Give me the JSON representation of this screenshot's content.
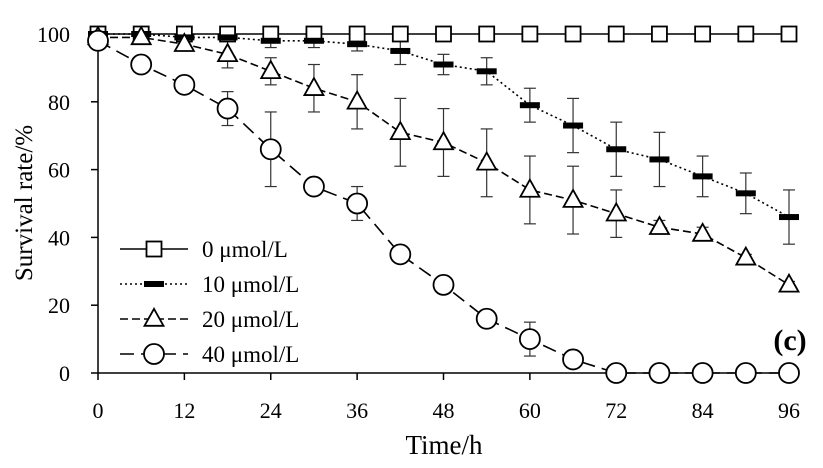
{
  "chart_data": {
    "type": "line",
    "title": "",
    "panel_label": "(c)",
    "xlabel": "Time/h",
    "ylabel": "Survival rate/%",
    "xlim": [
      0,
      96
    ],
    "ylim": [
      0,
      100
    ],
    "xticks": [
      0,
      12,
      24,
      36,
      48,
      60,
      72,
      84,
      96
    ],
    "yticks": [
      0,
      20,
      40,
      60,
      80,
      100
    ],
    "grid": false,
    "legend_position": "bottom-left",
    "x": [
      0,
      6,
      12,
      18,
      24,
      30,
      36,
      42,
      48,
      54,
      60,
      66,
      72,
      78,
      84,
      90,
      96
    ],
    "series": [
      {
        "name": "0 μmol/L",
        "marker": "square",
        "line": "solid",
        "values": [
          100,
          100,
          100,
          100,
          100,
          100,
          100,
          100,
          100,
          100,
          100,
          100,
          100,
          100,
          100,
          100,
          100
        ],
        "errors": [
          0,
          0,
          0,
          0,
          0,
          0,
          0,
          0,
          0,
          0,
          0,
          0,
          0,
          0,
          0,
          0,
          0
        ]
      },
      {
        "name": "10 μmol/L",
        "marker": "dash",
        "line": "dotted",
        "values": [
          100,
          100,
          99,
          99,
          98,
          98,
          97,
          95,
          91,
          89,
          79,
          73,
          66,
          63,
          58,
          53,
          46
        ],
        "errors": [
          0,
          0,
          1,
          1,
          2,
          2,
          2,
          4,
          3,
          4,
          5,
          8,
          8,
          8,
          6,
          6,
          8
        ]
      },
      {
        "name": "20 μmol/L",
        "marker": "triangle",
        "line": "short-dash",
        "values": [
          99,
          99,
          97,
          94,
          89,
          84,
          80,
          71,
          68,
          62,
          54,
          51,
          47,
          43,
          41,
          34,
          26
        ],
        "errors": [
          1,
          1,
          2,
          4,
          4,
          7,
          8,
          10,
          10,
          10,
          10,
          10,
          7,
          2,
          2,
          1,
          1
        ]
      },
      {
        "name": "40 μmol/L",
        "marker": "circle",
        "line": "long-dash",
        "values": [
          98,
          91,
          85,
          78,
          66,
          55,
          50,
          35,
          26,
          16,
          10,
          4,
          0,
          0,
          0,
          0,
          0
        ],
        "errors": [
          2,
          2,
          2,
          5,
          11,
          1,
          5,
          1,
          2,
          2,
          5,
          1,
          0,
          0,
          0,
          0,
          0
        ]
      }
    ]
  }
}
